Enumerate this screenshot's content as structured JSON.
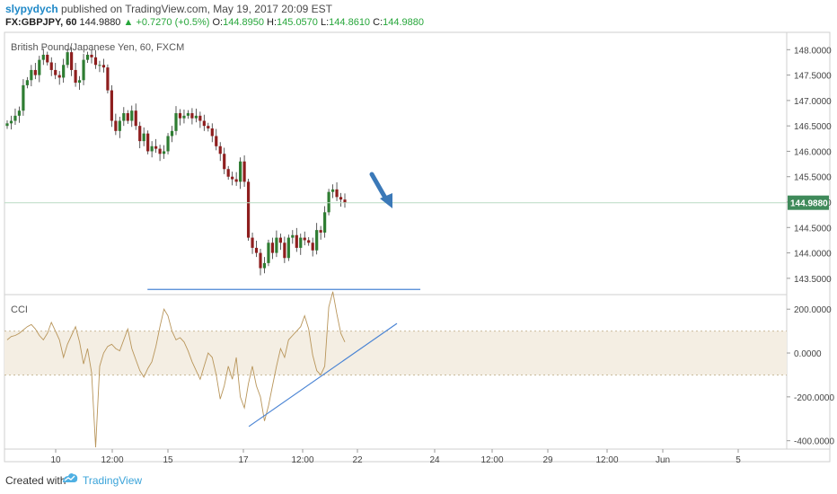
{
  "header": {
    "author": "slypydych",
    "published_text": " published on TradingView.com, May 19, 2017 20:09 EST",
    "symbol": "FX:GBPJPY, 60",
    "last": "144.9880",
    "change": "▲ +0.7270 (+0.5%)",
    "open_label": "O:",
    "open": "144.8950",
    "high_label": "H:",
    "high": "145.0570",
    "low_label": "L:",
    "low": "144.8610",
    "close_label": "C:",
    "close": "144.9880"
  },
  "footer": {
    "created_with": "Created with",
    "brand": "TradingView"
  },
  "chart_data": [
    {
      "type": "candlestick",
      "title": "British Pound/Japanese Yen, 60, FXCM",
      "ylim": [
        143.25,
        148.2
      ],
      "y_ticks": [
        "148.0000",
        "147.5000",
        "147.0000",
        "146.5000",
        "146.0000",
        "145.5000",
        "145.0000",
        "144.5000",
        "144.0000",
        "143.5000"
      ],
      "last_price_label": "144.9880",
      "x_ticks": [
        "10",
        "12:00",
        "15",
        "17",
        "12:00",
        "22",
        "24",
        "12:00",
        "29",
        "12:00",
        "Jun",
        "5"
      ],
      "colors": {
        "up": "#2e7d32",
        "down": "#8e1e1e",
        "last_line": "#b9dcc4",
        "last_badge": "#3f8a5a",
        "arrow": "#3b79b8"
      },
      "close_series": [
        146.55,
        146.6,
        146.7,
        146.8,
        147.3,
        147.4,
        147.6,
        147.5,
        147.8,
        147.9,
        147.75,
        147.6,
        147.5,
        147.45,
        147.7,
        147.95,
        147.6,
        147.35,
        147.4,
        147.8,
        147.9,
        147.85,
        147.7,
        147.7,
        147.65,
        147.2,
        146.6,
        146.4,
        146.6,
        146.75,
        146.6,
        146.8,
        146.5,
        146.2,
        146.35,
        146.0,
        146.1,
        146.05,
        145.95,
        146.0,
        146.3,
        146.4,
        146.75,
        146.65,
        146.7,
        146.75,
        146.65,
        146.7,
        146.6,
        146.5,
        146.45,
        146.3,
        146.1,
        145.95,
        145.65,
        145.5,
        145.45,
        145.4,
        145.8,
        145.4,
        144.3,
        144.1,
        144.0,
        143.7,
        143.8,
        144.2,
        144.0,
        144.3,
        144.2,
        143.9,
        144.3,
        144.35,
        144.1,
        144.3,
        144.25,
        144.2,
        144.05,
        144.45,
        144.4,
        144.8,
        145.2,
        145.25,
        145.1,
        145.05,
        144.99
      ]
    },
    {
      "type": "line",
      "title": "CCI",
      "ylim": [
        -430,
        250
      ],
      "y_ticks": [
        "200.0000",
        "0.0000",
        "-200.0000",
        "-400.0000"
      ],
      "band": [
        -100,
        100
      ],
      "colors": {
        "line": "#b8955a",
        "band": "#f4eee3",
        "trendline": "#4a84d4"
      },
      "values": [
        60,
        75,
        80,
        90,
        105,
        120,
        130,
        110,
        80,
        60,
        90,
        140,
        100,
        60,
        -20,
        40,
        80,
        120,
        50,
        -50,
        20,
        -90,
        -430,
        -60,
        0,
        30,
        40,
        20,
        10,
        60,
        110,
        20,
        -30,
        -80,
        -110,
        -70,
        -40,
        30,
        120,
        200,
        170,
        100,
        60,
        70,
        50,
        10,
        -40,
        -80,
        -120,
        -60,
        0,
        -20,
        -100,
        -210,
        -150,
        -60,
        -120,
        -20,
        -200,
        -250,
        -140,
        -60,
        -150,
        -200,
        -310,
        -240,
        -150,
        -60,
        20,
        -20,
        60,
        80,
        100,
        120,
        170,
        110,
        -10,
        -80,
        -100,
        -60,
        210,
        280,
        180,
        90,
        50
      ],
      "resistance_line": [
        [
          0.18,
          290
        ],
        [
          0.53,
          290
        ]
      ],
      "support_line": [
        [
          0.31,
          -335
        ],
        [
          0.5,
          135
        ]
      ]
    }
  ]
}
